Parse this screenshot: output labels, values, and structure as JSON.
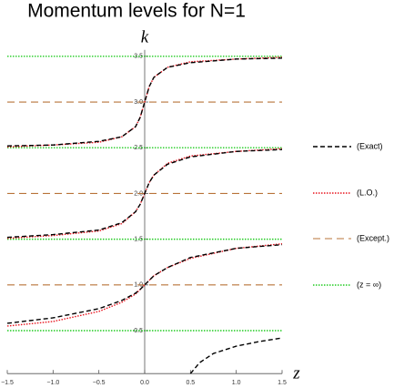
{
  "chart_data": {
    "type": "line",
    "title": "Momentum levels for N=1",
    "xlabel": "z",
    "ylabel": "k",
    "xlim": [
      -1.5,
      1.5
    ],
    "ylim": [
      0.03,
      3.57
    ],
    "xticks": [
      {
        "value": -1.5,
        "label": "−1.5"
      },
      {
        "value": -1,
        "label": "−1.0"
      },
      {
        "value": -0.5,
        "label": "−0.5"
      },
      {
        "value": 0,
        "label": "0.0"
      },
      0.5,
      {
        "value": 1,
        "label": "1.0"
      },
      1.5
    ],
    "yticks": [
      0.5,
      {
        "value": 1,
        "label": "1.0"
      },
      1.5,
      {
        "value": 2,
        "label": "2.0"
      },
      2.5,
      {
        "value": 3,
        "label": "3.0"
      },
      3.5
    ],
    "legend": "right",
    "series": [
      {
        "name": "(Exact)",
        "color": "#000000",
        "style": "dashed",
        "x": [
          0.5,
          0.6,
          0.75,
          1,
          1.25,
          1.5,
          null,
          -1.5,
          -1,
          -0.5,
          -0.25,
          -0.1,
          -0.05,
          0,
          0.05,
          0.1,
          0.25,
          0.5,
          1,
          1.5,
          null,
          -1.5,
          -1,
          -0.5,
          -0.25,
          -0.1,
          -0.05,
          0,
          0.05,
          0.1,
          0.25,
          0.5,
          1,
          1.5,
          null,
          -1.5,
          -1,
          -0.5,
          -0.25,
          -0.1,
          -0.05,
          0,
          0.05,
          0.1,
          0.25,
          0.5,
          1,
          1.5
        ],
        "values": [
          0.03,
          0.15,
          0.25,
          0.33,
          0.38,
          0.42,
          null,
          0.58,
          0.64,
          0.74,
          0.83,
          0.91,
          0.95,
          1.0,
          1.05,
          1.1,
          1.19,
          1.3,
          1.4,
          1.44,
          null,
          1.52,
          1.55,
          1.6,
          1.68,
          1.8,
          1.88,
          2.0,
          2.12,
          2.2,
          2.32,
          2.4,
          2.46,
          2.48,
          null,
          2.52,
          2.53,
          2.57,
          2.62,
          2.73,
          2.83,
          3.0,
          3.17,
          3.27,
          3.38,
          3.43,
          3.47,
          3.48
        ]
      },
      {
        "name": "(L.O.)",
        "color": "#e8141e",
        "style": "dotted",
        "x": [
          -1.5,
          -1,
          -0.5,
          -0.25,
          -0.1,
          -0.05,
          0,
          0.05,
          0.1,
          0.25,
          0.5,
          1,
          1.5,
          null,
          -1.5,
          -1,
          -0.5,
          -0.25,
          -0.1,
          -0.05,
          0,
          0.05,
          0.1,
          0.25,
          0.5,
          1,
          1.5,
          null,
          -1.5,
          -1,
          -0.5,
          -0.25,
          -0.1,
          -0.05,
          0,
          0.05,
          0.1,
          0.25,
          0.5,
          1,
          1.5
        ],
        "values": [
          0.55,
          0.6,
          0.71,
          0.81,
          0.9,
          0.95,
          1.0,
          1.05,
          1.1,
          1.19,
          1.29,
          1.4,
          1.45,
          null,
          1.51,
          1.54,
          1.59,
          1.67,
          1.8,
          1.88,
          2.0,
          2.12,
          2.2,
          2.33,
          2.41,
          2.46,
          2.49,
          null,
          2.51,
          2.53,
          2.56,
          2.62,
          2.73,
          2.83,
          3.0,
          3.17,
          3.27,
          3.38,
          3.44,
          3.47,
          3.49
        ]
      },
      {
        "name": "(Except.)",
        "color": "#b8733a",
        "style": "long-dashed",
        "x": [
          -1.5,
          1.5,
          null,
          -1.5,
          1.5,
          null,
          -1.5,
          1.5
        ],
        "values": [
          1,
          1,
          null,
          2,
          2,
          null,
          3,
          3
        ]
      },
      {
        "name": "(z = ∞)",
        "color": "#22cc22",
        "style": "dotted",
        "x": [
          -1.5,
          1.5,
          null,
          -1.5,
          1.5,
          null,
          -1.5,
          1.5,
          null,
          -1.5,
          1.5
        ],
        "values": [
          0.5,
          0.5,
          null,
          1.5,
          1.5,
          null,
          2.5,
          2.5,
          null,
          3.5,
          3.5
        ]
      }
    ]
  }
}
